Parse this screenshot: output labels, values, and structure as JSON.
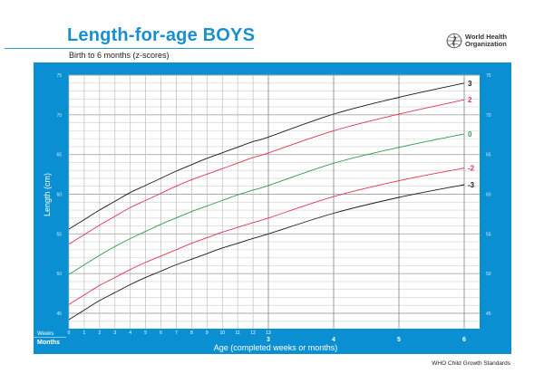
{
  "header": {
    "title": "Length-for-age BOYS",
    "subtitle": "Birth to 6 months (z-scores)",
    "org_line1": "World Health",
    "org_line2": "Organization",
    "logo_icon": "who-emblem-icon"
  },
  "footer": {
    "text": "WHO Child Growth Standards"
  },
  "colors": {
    "brand_blue": "#0b8fd3",
    "title_blue": "#1a8fd0",
    "z3": "#1a1a1a",
    "z2": "#e0344f",
    "z0": "#2e9b4e",
    "zm2": "#e0344f",
    "zm3": "#1a1a1a"
  },
  "axes": {
    "weeks_label": "Weeks",
    "months_label": "Months",
    "xlabel": "Age (completed weeks or months)",
    "ylabel": "Length (cm)"
  },
  "chart_data": {
    "type": "line",
    "title": "Length-for-age BOYS",
    "subtitle": "Birth to 6 months (z-scores)",
    "xlabel": "Age (completed weeks or months)",
    "ylabel": "Length (cm)",
    "ylim": [
      43,
      75
    ],
    "yticks": [
      45,
      50,
      55,
      60,
      65,
      70,
      75
    ],
    "x_weeks_ticks": [
      0,
      1,
      2,
      3,
      4,
      5,
      6,
      7,
      8,
      9,
      10,
      11,
      12,
      13
    ],
    "x_months_ticks": [
      3,
      4,
      5,
      6
    ],
    "grid": true,
    "legend_position": "right-end-labels",
    "x_positions_months": [
      0,
      0.23,
      0.46,
      0.69,
      0.92,
      1.15,
      1.38,
      1.61,
      1.84,
      2.07,
      2.3,
      2.53,
      2.76,
      3,
      4,
      5,
      6
    ],
    "x_labels": [
      "W0",
      "W1",
      "W2",
      "W3",
      "W4",
      "W5",
      "W6",
      "W7",
      "W8",
      "W9",
      "W10",
      "W11",
      "W12",
      "W13 (M3)",
      "M4",
      "M5",
      "M6"
    ],
    "series": [
      {
        "name": "3",
        "color": "#1a1a1a",
        "values": [
          55.6,
          56.8,
          58.0,
          59.1,
          60.2,
          61.1,
          62.0,
          62.9,
          63.7,
          64.5,
          65.2,
          65.9,
          66.6,
          67.2,
          70.1,
          72.2,
          74.0
        ]
      },
      {
        "name": "2",
        "color": "#e0344f",
        "values": [
          53.7,
          54.9,
          56.1,
          57.2,
          58.3,
          59.2,
          60.1,
          61.0,
          61.8,
          62.5,
          63.2,
          63.9,
          64.6,
          65.2,
          68.0,
          70.1,
          71.9
        ]
      },
      {
        "name": "0",
        "color": "#2e9b4e",
        "values": [
          49.9,
          51.1,
          52.3,
          53.4,
          54.4,
          55.3,
          56.2,
          57.0,
          57.8,
          58.5,
          59.2,
          59.9,
          60.5,
          61.1,
          63.9,
          65.9,
          67.6
        ]
      },
      {
        "name": "-2",
        "color": "#e0344f",
        "values": [
          46.1,
          47.3,
          48.5,
          49.5,
          50.5,
          51.4,
          52.2,
          53.0,
          53.8,
          54.5,
          55.2,
          55.8,
          56.4,
          57.0,
          59.7,
          61.7,
          63.3
        ]
      },
      {
        "name": "-3",
        "color": "#1a1a1a",
        "values": [
          44.2,
          45.4,
          46.6,
          47.6,
          48.6,
          49.5,
          50.3,
          51.1,
          51.8,
          52.5,
          53.2,
          53.8,
          54.4,
          55.0,
          57.6,
          59.6,
          61.2
        ]
      }
    ]
  }
}
